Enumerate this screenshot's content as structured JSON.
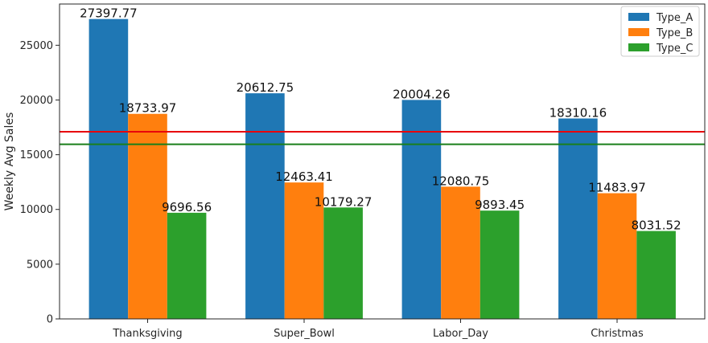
{
  "chart_data": {
    "type": "bar",
    "title": "",
    "xlabel": "",
    "ylabel": "Weekly Avg Sales",
    "categories": [
      "Thanksgiving",
      "Super_Bowl",
      "Labor_Day",
      "Christmas"
    ],
    "series": [
      {
        "name": "Type_A",
        "color": "#1f77b4",
        "values": [
          27397.77,
          20612.75,
          20004.26,
          18310.16
        ]
      },
      {
        "name": "Type_B",
        "color": "#ff7f0e",
        "values": [
          18733.97,
          12463.41,
          12080.75,
          11483.97
        ]
      },
      {
        "name": "Type_C",
        "color": "#2ca02c",
        "values": [
          9696.56,
          10179.27,
          9893.45,
          8031.52
        ]
      }
    ],
    "yticks": [
      0,
      5000,
      10000,
      15000,
      20000,
      25000
    ],
    "ylim": [
      0,
      28767
    ],
    "hlines": [
      {
        "value": 17100,
        "color": "#e8000b"
      },
      {
        "value": 15950,
        "color": "#1a7f1a"
      }
    ],
    "legend": "top-right",
    "grid": false
  }
}
